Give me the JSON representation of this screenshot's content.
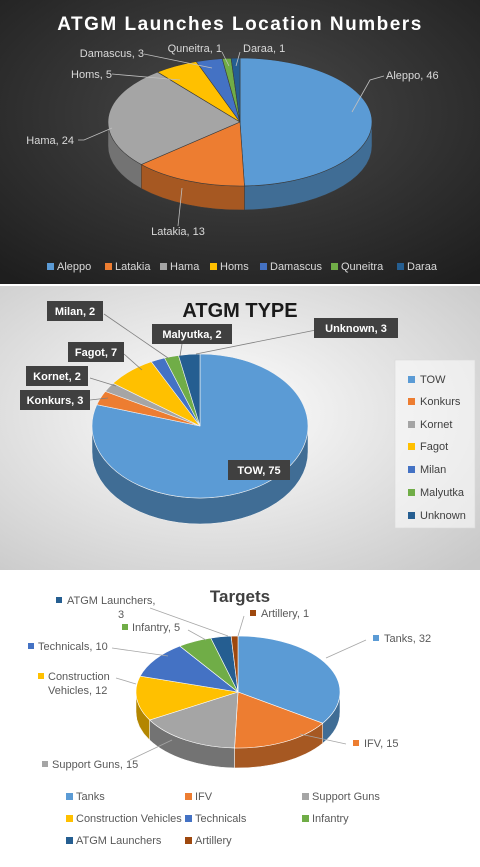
{
  "chart_data": [
    {
      "type": "pie",
      "title": "ATGM Launches Location Numbers",
      "categories": [
        "Aleppo",
        "Latakia",
        "Hama",
        "Homs",
        "Damascus",
        "Quneitra",
        "Daraa"
      ],
      "values": [
        46,
        13,
        24,
        5,
        3,
        1,
        1
      ],
      "data_labels": [
        "Aleppo, 46",
        "Latakia, 13",
        "Hama, 24",
        "Homs, 5",
        "Damascus, 3",
        "Quneitra, 1",
        "Daraa, 1"
      ],
      "colors": [
        "#5b9bd5",
        "#ed7d31",
        "#a5a5a5",
        "#ffc000",
        "#4472c4",
        "#70ad47",
        "#255e91"
      ],
      "legend": "bottom"
    },
    {
      "type": "pie",
      "title": "ATGM TYPE",
      "categories": [
        "TOW",
        "Konkurs",
        "Kornet",
        "Fagot",
        "Milan",
        "Malyutka",
        "Unknown"
      ],
      "values": [
        75,
        3,
        2,
        7,
        2,
        2,
        3
      ],
      "data_labels": [
        "TOW, 75",
        "Konkurs, 3",
        "Kornet, 2",
        "Fagot, 7",
        "Milan, 2",
        "Malyutka, 2",
        "Unknown, 3"
      ],
      "colors": [
        "#5b9bd5",
        "#ed7d31",
        "#a5a5a5",
        "#ffc000",
        "#4472c4",
        "#70ad47",
        "#255e91"
      ],
      "legend": "right"
    },
    {
      "type": "pie",
      "title": "Targets",
      "categories": [
        "Tanks",
        "IFV",
        "Support Guns",
        "Construction Vehicles",
        "Technicals",
        "Infantry",
        "ATGM Launchers",
        "Artillery"
      ],
      "values": [
        32,
        15,
        15,
        12,
        10,
        5,
        3,
        1
      ],
      "data_labels": [
        "Tanks, 32",
        "IFV, 15",
        "Support Guns, 15",
        "Construction Vehicles, 12",
        "Technicals, 10",
        "Infantry, 5",
        "ATGM Launchers, 3",
        "Artillery, 1"
      ],
      "colors": [
        "#5b9bd5",
        "#ed7d31",
        "#a5a5a5",
        "#ffc000",
        "#4472c4",
        "#70ad47",
        "#255e91",
        "#9e480e"
      ],
      "legend": "bottom"
    }
  ]
}
